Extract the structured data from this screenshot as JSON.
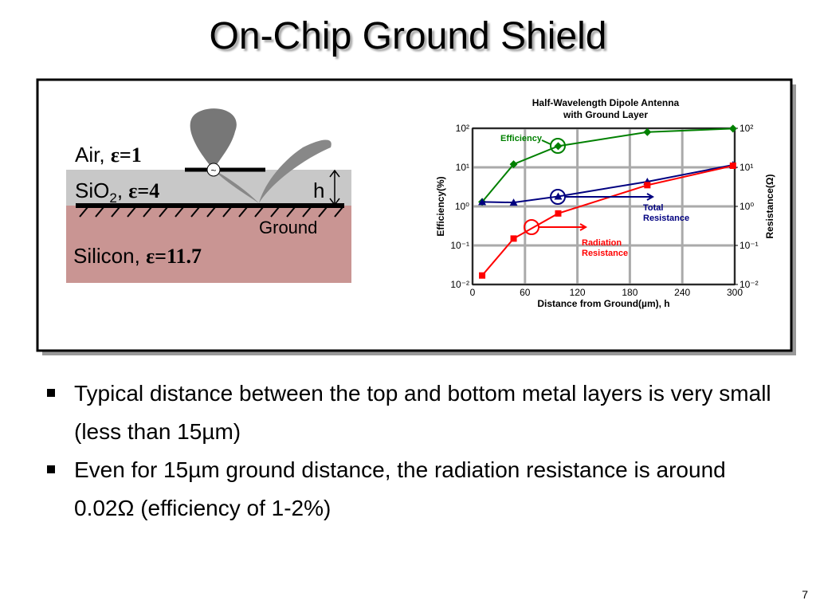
{
  "title": "On-Chip Ground Shield",
  "diagram": {
    "air": {
      "name": "Air,",
      "eps": "ε=1"
    },
    "sio2": {
      "name": "SiO",
      "sub": "2",
      "sep": ",",
      "eps": "ε=4"
    },
    "h": "h",
    "ground": "Ground",
    "silicon": {
      "name": "Silicon,",
      "eps": "ε=11.7"
    }
  },
  "chart_data": {
    "type": "line",
    "title": [
      "Half-Wavelength Dipole Antenna",
      "with Ground Layer"
    ],
    "xlabel": "Distance from Ground(µm), h",
    "ylabel": "Efficiency(%)",
    "y2label": "Resistance(Ω)",
    "xlim": [
      0,
      300
    ],
    "xticks": [
      0,
      60,
      120,
      180,
      240,
      300
    ],
    "ylim": [
      0.01,
      100
    ],
    "y2lim": [
      0.01,
      100
    ],
    "log_y": true,
    "grid": true,
    "yticks": [
      {
        "value": 0.01,
        "label": "10⁻²"
      },
      {
        "value": 0.1,
        "label": "10⁻¹"
      },
      {
        "value": 1,
        "label": "10⁰"
      },
      {
        "value": 10,
        "label": "10¹"
      },
      {
        "value": 100,
        "label": "10²"
      }
    ],
    "y2ticks": [
      {
        "value": 0.01,
        "label": "10⁻²"
      },
      {
        "value": 0.1,
        "label": "10⁻¹"
      },
      {
        "value": 1,
        "label": "10⁰"
      },
      {
        "value": 10,
        "label": "10¹"
      },
      {
        "value": 100,
        "label": "10²"
      }
    ],
    "x": [
      11,
      47,
      98,
      200,
      298
    ],
    "series": [
      {
        "name": [
          "Efficiency"
        ],
        "color": "#008000",
        "marker": "diamond",
        "values": [
          1.3,
          12,
          35,
          80,
          98
        ]
      },
      {
        "name": [
          "Total",
          "Resistance"
        ],
        "color": "#000080",
        "marker": "triangle",
        "axis": "y2",
        "values": [
          1.3,
          1.26,
          1.8,
          4.3,
          11.5
        ]
      },
      {
        "name": [
          "Radiation",
          "Resistance"
        ],
        "color": "#ff0000",
        "marker": "square",
        "axis": "y2",
        "values": [
          0.017,
          0.15,
          0.66,
          3.5,
          11
        ]
      }
    ]
  },
  "bullets": [
    "Typical distance between the top and bottom metal layers is very small (less than 15µm)",
    "Even for 15µm ground distance, the radiation resistance is around 0.02Ω (efficiency of 1-2%)"
  ],
  "page_number": "7"
}
